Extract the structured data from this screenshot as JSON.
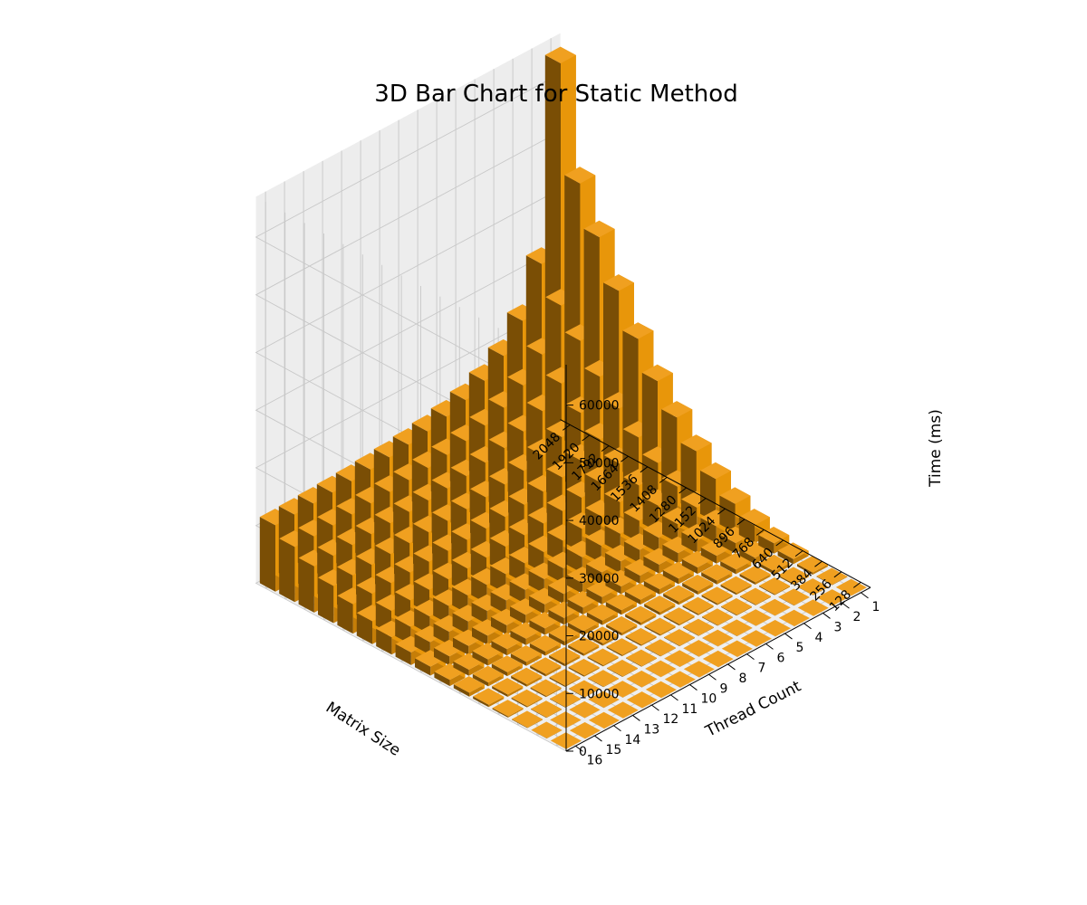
{
  "chart_data": {
    "type": "bar3d",
    "title": "3D Bar Chart for Static Method",
    "x_axis": {
      "label": "Matrix Size",
      "ticks": [
        "128",
        "256",
        "384",
        "512",
        "640",
        "768",
        "896",
        "1024",
        "1152",
        "1280",
        "1408",
        "1536",
        "1664",
        "1792",
        "1920",
        "2048"
      ]
    },
    "y_axis": {
      "label": "Thread Count",
      "ticks": [
        "1",
        "2",
        "3",
        "4",
        "5",
        "6",
        "7",
        "8",
        "9",
        "10",
        "11",
        "12",
        "13",
        "14",
        "15",
        "16"
      ]
    },
    "z_axis": {
      "label": "Time (ms)",
      "ticks": [
        0,
        10000,
        20000,
        30000,
        40000,
        50000,
        60000
      ],
      "zlim": [
        0,
        67000
      ]
    },
    "bar_color": "#E8960A",
    "pane_color": "#F2F2F2",
    "grid_color": "#C8C8C8",
    "values_note_rows_are_matrix_sizes_cols_are_thread_counts_1_to_16": true,
    "values": [
      [
        12,
        11,
        11,
        10,
        10,
        10,
        10,
        10,
        10,
        10,
        10,
        10,
        10,
        10,
        10,
        10
      ],
      [
        110,
        72,
        60,
        52,
        48,
        45,
        44,
        43,
        42,
        42,
        41,
        41,
        41,
        41,
        41,
        41
      ],
      [
        380,
        230,
        180,
        150,
        135,
        125,
        118,
        113,
        110,
        108,
        106,
        105,
        104,
        103,
        103,
        102
      ],
      [
        900,
        540,
        410,
        340,
        300,
        275,
        258,
        246,
        238,
        232,
        227,
        224,
        221,
        219,
        217,
        216
      ],
      [
        1800,
        1060,
        800,
        660,
        580,
        530,
        495,
        470,
        452,
        440,
        430,
        423,
        417,
        412,
        409,
        406
      ],
      [
        3100,
        1800,
        1360,
        1120,
        980,
        890,
        830,
        790,
        760,
        738,
        720,
        707,
        696,
        688,
        681,
        676
      ],
      [
        5000,
        2900,
        2180,
        1790,
        1560,
        1420,
        1320,
        1250,
        1200,
        1160,
        1130,
        1110,
        1094,
        1080,
        1070,
        1062
      ],
      [
        7500,
        4300,
        3220,
        2640,
        2300,
        2090,
        1940,
        1840,
        1765,
        1708,
        1664,
        1630,
        1604,
        1584,
        1568,
        1555
      ],
      [
        10500,
        6100,
        4560,
        3740,
        3260,
        2960,
        2750,
        2600,
        2495,
        2415,
        2353,
        2305,
        2268,
        2240,
        2217,
        2198
      ],
      [
        14500,
        8400,
        6280,
        5150,
        4490,
        4070,
        3780,
        3575,
        3430,
        3320,
        3235,
        3170,
        3120,
        3080,
        3048,
        3022
      ],
      [
        19000,
        11000,
        8220,
        6740,
        5870,
        5330,
        4950,
        4680,
        4490,
        4345,
        4235,
        4150,
        4085,
        4032,
        3990,
        3956
      ],
      [
        24500,
        14200,
        10620,
        8700,
        7580,
        6880,
        6390,
        6040,
        5795,
        5608,
        5466,
        5356,
        5272,
        5204,
        5150,
        5106
      ],
      [
        31000,
        17900,
        13380,
        10970,
        9560,
        8680,
        8060,
        7620,
        7310,
        7074,
        6895,
        6756,
        6650,
        6564,
        6496,
        6440
      ],
      [
        38500,
        22300,
        16670,
        13660,
        11900,
        10800,
        10030,
        9480,
        9098,
        8805,
        8582,
        8409,
        8277,
        8170,
        8085,
        8016
      ],
      [
        46000,
        26600,
        19880,
        16290,
        14190,
        12880,
        11960,
        11310,
        10850,
        10500,
        10235,
        10028,
        9871,
        9744,
        9642,
        9560
      ],
      [
        65000,
        32000,
        23900,
        19580,
        17060,
        15490,
        14380,
        13600,
        13050,
        12630,
        12310,
        12060,
        11870,
        11720,
        11600,
        11500
      ]
    ]
  }
}
